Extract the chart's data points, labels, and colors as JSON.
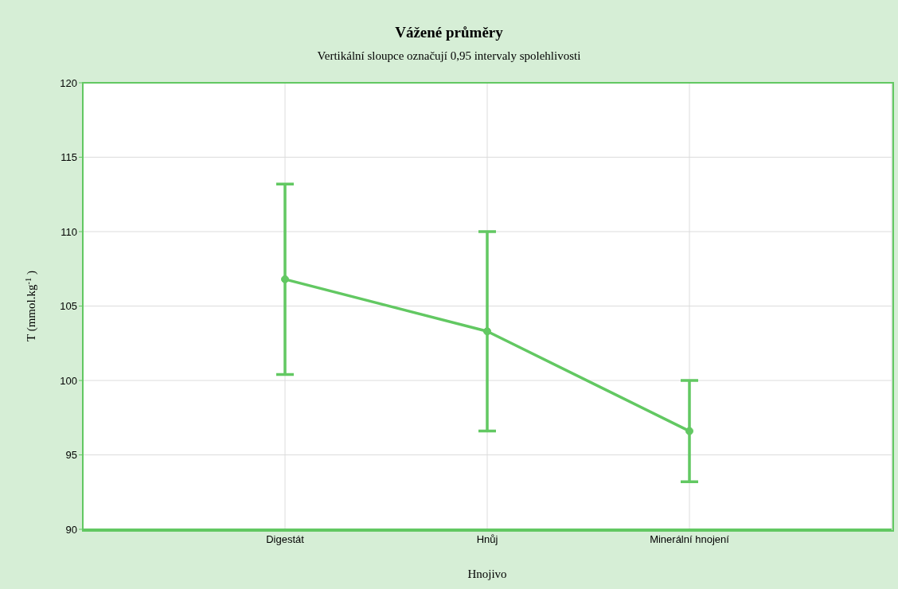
{
  "chart_data": {
    "type": "line",
    "title": "Vážené průměry",
    "subtitle": "Vertikální sloupce označují 0,95 intervaly spolehlivosti",
    "xlabel": "Hnojivo",
    "ylabel": "T (mmol.kg$^{-1}$)",
    "categories": [
      "Digestát",
      "Hnůj",
      "Minerální hnojení"
    ],
    "values": [
      106.8,
      103.3,
      96.6
    ],
    "errors": [
      6.4,
      6.7,
      3.4
    ],
    "color": "#62c862",
    "ylim": [
      90,
      120
    ],
    "yticks": [
      90,
      95,
      100,
      105,
      110,
      115,
      120
    ],
    "grid": true,
    "legend": false,
    "marker": "circle",
    "line_style": "solid"
  }
}
